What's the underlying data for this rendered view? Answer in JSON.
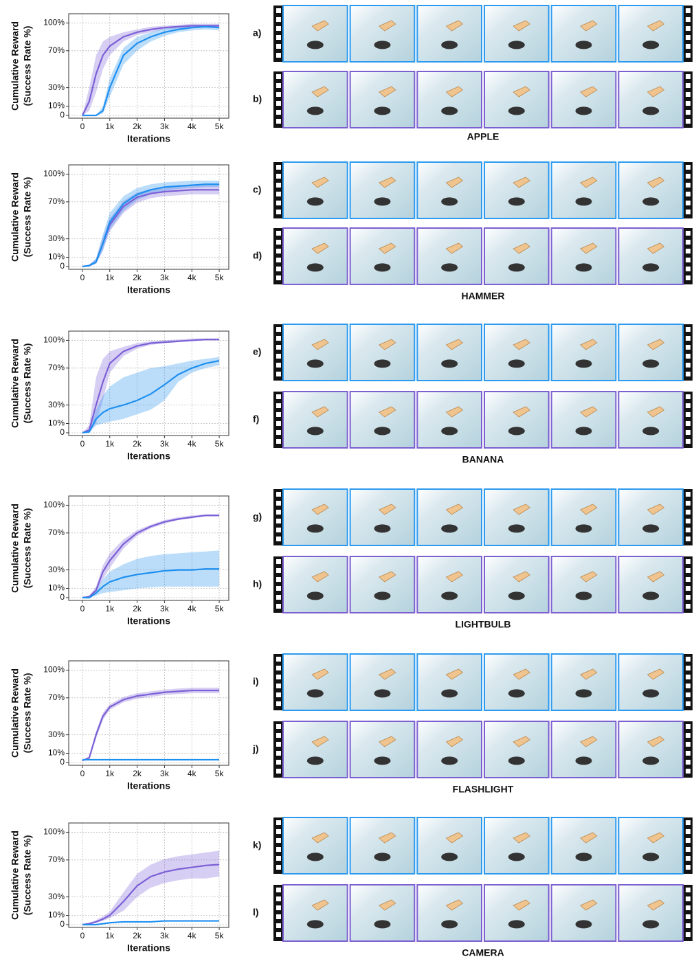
{
  "chart_data": [
    {
      "type": "line",
      "ylabel": [
        "Cumulative Reward",
        "(Success Rate %)"
      ],
      "xlabel": "Iterations",
      "grid": true,
      "xlim": [
        -500,
        5350
      ],
      "ylim": [
        -3,
        110
      ],
      "xticks": [
        0,
        {
          "value": 1000,
          "label": "1k"
        },
        {
          "value": 2000,
          "label": "2k"
        },
        {
          "value": 3000,
          "label": "3k"
        },
        {
          "value": 4000,
          "label": "4k"
        },
        {
          "value": 5000,
          "label": "5k"
        }
      ],
      "yticks": [
        0,
        {
          "value": 10,
          "label": "10%"
        },
        {
          "value": 30,
          "label": "30%"
        },
        {
          "value": 70,
          "label": "70%"
        },
        {
          "value": 100,
          "label": "100%"
        }
      ],
      "x": [
        0,
        250,
        500,
        750,
        1000,
        1500,
        2000,
        2500,
        3000,
        3500,
        4000,
        4500,
        5000
      ],
      "series": [
        {
          "color": "#7b5fd6",
          "values": [
            0,
            15,
            45,
            65,
            75,
            85,
            90,
            93,
            95,
            96,
            97,
            97,
            97
          ],
          "lower": [
            0,
            5,
            25,
            50,
            65,
            80,
            87,
            90,
            93,
            94,
            95,
            95,
            95
          ],
          "upper": [
            0,
            30,
            65,
            80,
            85,
            90,
            93,
            96,
            97,
            98,
            99,
            99,
            99
          ]
        },
        {
          "color": "#1e8ff0",
          "values": [
            0,
            0,
            0,
            5,
            30,
            65,
            78,
            85,
            90,
            93,
            95,
            96,
            95
          ],
          "lower": [
            0,
            0,
            0,
            2,
            20,
            55,
            70,
            80,
            86,
            90,
            92,
            93,
            92
          ],
          "upper": [
            0,
            0,
            0,
            10,
            40,
            73,
            85,
            90,
            94,
            96,
            98,
            98,
            98
          ]
        }
      ]
    },
    {
      "type": "line",
      "ylabel": [
        "Cumulative Reward",
        "(Success Rate %)"
      ],
      "xlabel": "Iterations",
      "grid": true,
      "xlim": [
        -500,
        5350
      ],
      "ylim": [
        -3,
        110
      ],
      "xticks": [
        0,
        {
          "value": 1000,
          "label": "1k"
        },
        {
          "value": 2000,
          "label": "2k"
        },
        {
          "value": 3000,
          "label": "3k"
        },
        {
          "value": 4000,
          "label": "4k"
        },
        {
          "value": 5000,
          "label": "5k"
        }
      ],
      "yticks": [
        0,
        {
          "value": 10,
          "label": "10%"
        },
        {
          "value": 30,
          "label": "30%"
        },
        {
          "value": 70,
          "label": "70%"
        },
        {
          "value": 100,
          "label": "100%"
        }
      ],
      "x": [
        0,
        250,
        500,
        750,
        1000,
        1500,
        2000,
        2500,
        3000,
        3500,
        4000,
        4500,
        5000
      ],
      "series": [
        {
          "color": "#7b5fd6",
          "values": [
            0,
            1,
            5,
            25,
            45,
            65,
            75,
            79,
            81,
            82,
            83,
            83,
            83
          ],
          "lower": [
            0,
            0,
            3,
            18,
            38,
            58,
            69,
            74,
            76,
            77,
            78,
            78,
            78
          ],
          "upper": [
            0,
            2,
            8,
            32,
            52,
            71,
            80,
            84,
            86,
            87,
            88,
            88,
            88
          ]
        },
        {
          "color": "#1e8ff0",
          "values": [
            0,
            1,
            5,
            25,
            48,
            68,
            78,
            83,
            86,
            87,
            88,
            89,
            89
          ],
          "lower": [
            0,
            0,
            3,
            17,
            40,
            60,
            72,
            78,
            82,
            84,
            85,
            86,
            86
          ],
          "upper": [
            0,
            2,
            9,
            35,
            58,
            76,
            85,
            89,
            91,
            92,
            93,
            93,
            93
          ]
        }
      ]
    },
    {
      "type": "line",
      "ylabel": [
        "Cumulative Reward",
        "(Success Rate %)"
      ],
      "xlabel": "Iterations",
      "grid": true,
      "xlim": [
        -500,
        5350
      ],
      "ylim": [
        -3,
        110
      ],
      "xticks": [
        0,
        {
          "value": 1000,
          "label": "1k"
        },
        {
          "value": 2000,
          "label": "2k"
        },
        {
          "value": 3000,
          "label": "3k"
        },
        {
          "value": 4000,
          "label": "4k"
        },
        {
          "value": 5000,
          "label": "5k"
        }
      ],
      "yticks": [
        0,
        {
          "value": 10,
          "label": "10%"
        },
        {
          "value": 30,
          "label": "30%"
        },
        {
          "value": 70,
          "label": "70%"
        },
        {
          "value": 100,
          "label": "100%"
        }
      ],
      "x": [
        0,
        250,
        500,
        750,
        1000,
        1500,
        2000,
        2500,
        3000,
        3500,
        4000,
        4500,
        5000
      ],
      "series": [
        {
          "color": "#7b5fd6",
          "values": [
            0,
            3,
            30,
            55,
            75,
            88,
            94,
            97,
            98,
            99,
            100,
            101,
            101
          ],
          "lower": [
            0,
            1,
            10,
            35,
            65,
            83,
            91,
            95,
            97,
            98,
            99,
            100,
            100
          ],
          "upper": [
            0,
            8,
            60,
            80,
            88,
            93,
            97,
            99,
            100,
            101,
            102,
            102,
            102
          ]
        },
        {
          "color": "#1e8ff0",
          "values": [
            0,
            1,
            15,
            22,
            26,
            30,
            35,
            42,
            52,
            63,
            70,
            75,
            78
          ],
          "lower": [
            0,
            0,
            8,
            10,
            12,
            15,
            20,
            25,
            35,
            55,
            65,
            70,
            73
          ],
          "upper": [
            0,
            3,
            25,
            40,
            50,
            60,
            65,
            70,
            72,
            75,
            78,
            80,
            82
          ]
        }
      ]
    },
    {
      "type": "line",
      "ylabel": [
        "Cumulative Reward",
        "(Success Rate %)"
      ],
      "xlabel": "Iterations",
      "grid": true,
      "xlim": [
        -500,
        5350
      ],
      "ylim": [
        -3,
        110
      ],
      "xticks": [
        0,
        {
          "value": 1000,
          "label": "1k"
        },
        {
          "value": 2000,
          "label": "2k"
        },
        {
          "value": 3000,
          "label": "3k"
        },
        {
          "value": 4000,
          "label": "4k"
        },
        {
          "value": 5000,
          "label": "5k"
        }
      ],
      "yticks": [
        0,
        {
          "value": 10,
          "label": "10%"
        },
        {
          "value": 30,
          "label": "30%"
        },
        {
          "value": 70,
          "label": "70%"
        },
        {
          "value": 100,
          "label": "100%"
        }
      ],
      "x": [
        0,
        250,
        500,
        750,
        1000,
        1500,
        2000,
        2500,
        3000,
        3500,
        4000,
        4500,
        5000
      ],
      "series": [
        {
          "color": "#7b5fd6",
          "values": [
            0,
            1,
            8,
            28,
            40,
            58,
            70,
            77,
            82,
            85,
            87,
            89,
            89
          ],
          "lower": [
            0,
            0,
            5,
            20,
            32,
            53,
            67,
            75,
            80,
            84,
            86,
            88,
            88
          ],
          "upper": [
            0,
            2,
            12,
            35,
            48,
            63,
            73,
            79,
            84,
            87,
            89,
            90,
            90
          ]
        },
        {
          "color": "#1e8ff0",
          "values": [
            0,
            0,
            5,
            12,
            17,
            22,
            25,
            27,
            29,
            30,
            30,
            31,
            31
          ],
          "lower": [
            0,
            0,
            2,
            5,
            6,
            8,
            10,
            11,
            12,
            12,
            12,
            12,
            12
          ],
          "upper": [
            0,
            1,
            8,
            20,
            28,
            36,
            42,
            45,
            47,
            48,
            49,
            50,
            51
          ]
        }
      ]
    },
    {
      "type": "line",
      "ylabel": [
        "Cumulative Reward",
        "(Success Rate %)"
      ],
      "xlabel": "Iterations",
      "grid": true,
      "xlim": [
        -500,
        5350
      ],
      "ylim": [
        -3,
        110
      ],
      "xticks": [
        0,
        {
          "value": 1000,
          "label": "1k"
        },
        {
          "value": 2000,
          "label": "2k"
        },
        {
          "value": 3000,
          "label": "3k"
        },
        {
          "value": 4000,
          "label": "4k"
        },
        {
          "value": 5000,
          "label": "5k"
        }
      ],
      "yticks": [
        0,
        {
          "value": 10,
          "label": "10%"
        },
        {
          "value": 30,
          "label": "30%"
        },
        {
          "value": 70,
          "label": "70%"
        },
        {
          "value": 100,
          "label": "100%"
        }
      ],
      "x": [
        0,
        250,
        500,
        750,
        1000,
        1500,
        2000,
        2500,
        3000,
        3500,
        4000,
        4500,
        5000
      ],
      "series": [
        {
          "color": "#7b5fd6",
          "values": [
            2,
            5,
            30,
            50,
            60,
            68,
            72,
            74,
            76,
            77,
            78,
            78,
            78
          ],
          "lower": [
            2,
            3,
            26,
            46,
            57,
            65,
            69,
            71,
            73,
            74,
            75,
            75,
            75
          ],
          "upper": [
            2,
            7,
            34,
            54,
            63,
            71,
            75,
            77,
            79,
            80,
            81,
            81,
            81
          ]
        },
        {
          "color": "#1e8ff0",
          "values": [
            3,
            3,
            3,
            3,
            3,
            3,
            3,
            3,
            3,
            3,
            3,
            3,
            3
          ]
        }
      ]
    },
    {
      "type": "line",
      "ylabel": [
        "Cumulative Reward",
        "(Success Rate %)"
      ],
      "xlabel": "Iterations",
      "grid": true,
      "xlim": [
        -500,
        5350
      ],
      "ylim": [
        -3,
        110
      ],
      "xticks": [
        0,
        {
          "value": 1000,
          "label": "1k"
        },
        {
          "value": 2000,
          "label": "2k"
        },
        {
          "value": 3000,
          "label": "3k"
        },
        {
          "value": 4000,
          "label": "4k"
        },
        {
          "value": 5000,
          "label": "5k"
        }
      ],
      "yticks": [
        0,
        {
          "value": 10,
          "label": "10%"
        },
        {
          "value": 30,
          "label": "30%"
        },
        {
          "value": 70,
          "label": "70%"
        },
        {
          "value": 100,
          "label": "100%"
        }
      ],
      "x": [
        0,
        250,
        500,
        750,
        1000,
        1500,
        2000,
        2500,
        3000,
        3500,
        4000,
        4500,
        5000
      ],
      "series": [
        {
          "color": "#7b5fd6",
          "values": [
            0,
            1,
            3,
            6,
            10,
            25,
            42,
            52,
            57,
            60,
            62,
            64,
            65
          ],
          "lower": [
            0,
            0,
            2,
            4,
            7,
            15,
            30,
            40,
            45,
            48,
            50,
            50,
            52
          ],
          "upper": [
            0,
            2,
            5,
            9,
            14,
            35,
            55,
            65,
            71,
            74,
            76,
            78,
            80
          ]
        },
        {
          "color": "#1e8ff0",
          "values": [
            0,
            0,
            0,
            1,
            2,
            3,
            3,
            3,
            4,
            4,
            4,
            4,
            4
          ]
        }
      ]
    }
  ],
  "filmstrips": [
    {
      "name": "APPLE",
      "rows": [
        "a)",
        "b)"
      ]
    },
    {
      "name": "HAMMER",
      "rows": [
        "c)",
        "d)"
      ]
    },
    {
      "name": "BANANA",
      "rows": [
        "e)",
        "f)"
      ]
    },
    {
      "name": "LIGHTBULB",
      "rows": [
        "g)",
        "h)"
      ]
    },
    {
      "name": "FLASHLIGHT",
      "rows": [
        "i)",
        "j)"
      ]
    },
    {
      "name": "CAMERA",
      "rows": [
        "k)",
        "l)"
      ]
    }
  ]
}
